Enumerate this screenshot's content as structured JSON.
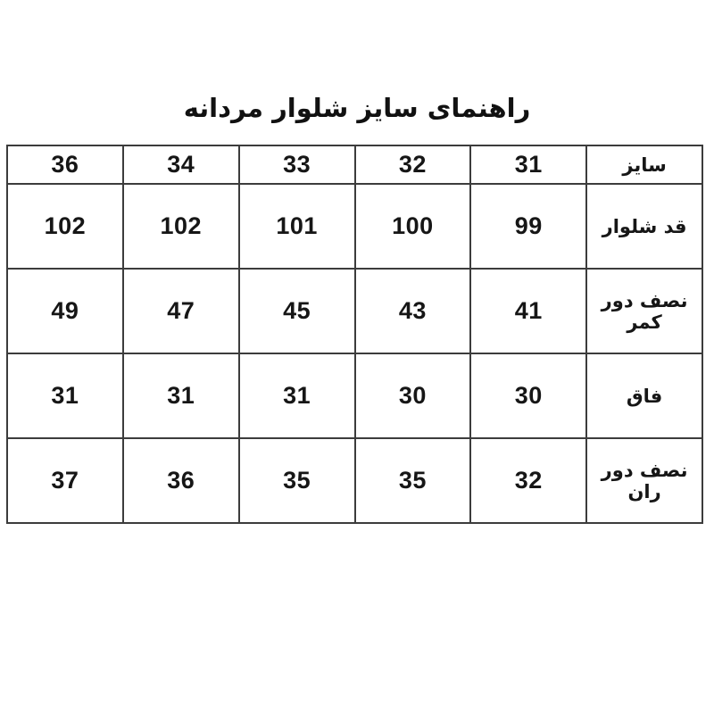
{
  "title": "راهنمای سایز شلوار مردانه",
  "table": {
    "header_label": "سایز",
    "sizes": [
      "31",
      "32",
      "33",
      "34",
      "36"
    ],
    "rows": [
      {
        "label": "قد شلوار",
        "values": [
          "99",
          "100",
          "101",
          "102",
          "102"
        ]
      },
      {
        "label": "نصف دور کمر",
        "values": [
          "41",
          "43",
          "45",
          "47",
          "49"
        ]
      },
      {
        "label": "فاق",
        "values": [
          "30",
          "30",
          "31",
          "31",
          "31"
        ]
      },
      {
        "label": "نصف دور ران",
        "values": [
          "32",
          "35",
          "35",
          "36",
          "37"
        ]
      }
    ]
  }
}
